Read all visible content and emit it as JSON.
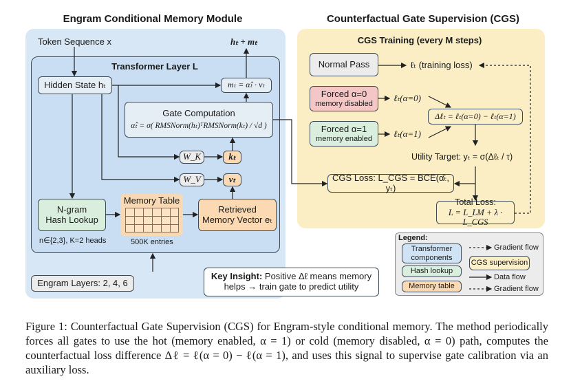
{
  "left_panel": {
    "title": "Engram Conditional Memory Module",
    "token_sequence": "Token Sequence x",
    "output": "hₜ + mₜ",
    "transformer_layer": "Transformer Layer L",
    "hidden_state": "Hidden State hₜ",
    "memory_output": "mₜ = α̂ₜ · vₜ",
    "gate_title": "Gate Computation",
    "gate_formula": "α̂ₜ = σ( RMSNorm(hₜ)ᵀRMSNorm(kₜ) / √d )",
    "wk": "W_K",
    "wv": "W_V",
    "kt": "kₜ",
    "vt": "vₜ",
    "ngram_line1": "N-gram",
    "ngram_line2": "Hash Lookup",
    "ngram_note": "n∈{2,3}, K=2 heads",
    "memory_table": "Memory Table",
    "memory_entries": "500K entries",
    "retrieved_line1": "Retrieved",
    "retrieved_line2": "Memory Vector eₜ",
    "engram_layers": "Engram Layers: 2, 4, 6",
    "key_insight_label": "Key Insight:",
    "key_insight_text1": "Positive Δℓ means memory",
    "key_insight_text2": "helps → train gate to predict utility"
  },
  "right_panel": {
    "title": "Counterfactual Gate Supervision (CGS)",
    "training_title": "CGS Training (every M steps)",
    "normal_pass": "Normal Pass",
    "training_loss": "ℓₜ (training loss)",
    "forced0": "Forced α=0",
    "forced0_sub": "memory disabled",
    "loss0": "ℓₜ(α=0)",
    "forced1": "Forced α=1",
    "forced1_sub": "memory enabled",
    "loss1": "ℓₜ(α=1)",
    "delta": "Δℓₜ = ℓₜ(α=0) − ℓₜ(α=1)",
    "utility": "Utility Target: yₜ = σ(Δℓₜ / τ)",
    "cgs_loss": "CGS Loss: L_CGS = BCE(α̂ₜ, yₜ)",
    "total_loss_title": "Total Loss:",
    "total_loss_formula": "L = L_LM + λ · L_CGS"
  },
  "legend": {
    "title": "Legend:",
    "items": [
      "Transformer components",
      "Hash lookup",
      "Memory table",
      "CGS supervision"
    ],
    "gradient_flow": "Gradient flow",
    "data_flow": "Data flow",
    "gradient_flow_2": "Gradient flow"
  },
  "caption": "Figure 1: Counterfactual Gate Supervision (CGS) for Engram-style conditional memory. The method periodically forces all gates to use the hot (memory enabled, α = 1) or cold (memory disabled, α = 0) path, computes the counterfactual loss difference Δℓ = ℓ(α = 0) − ℓ(α = 1), and uses this signal to supervise gate calibration via an auxiliary loss.",
  "colors": {
    "transformer": "#cfe3f5",
    "hash": "#d9eedd",
    "memory": "#fbd9b3",
    "cgs": "#fbefc8",
    "forced0": "#f4c6c6"
  }
}
